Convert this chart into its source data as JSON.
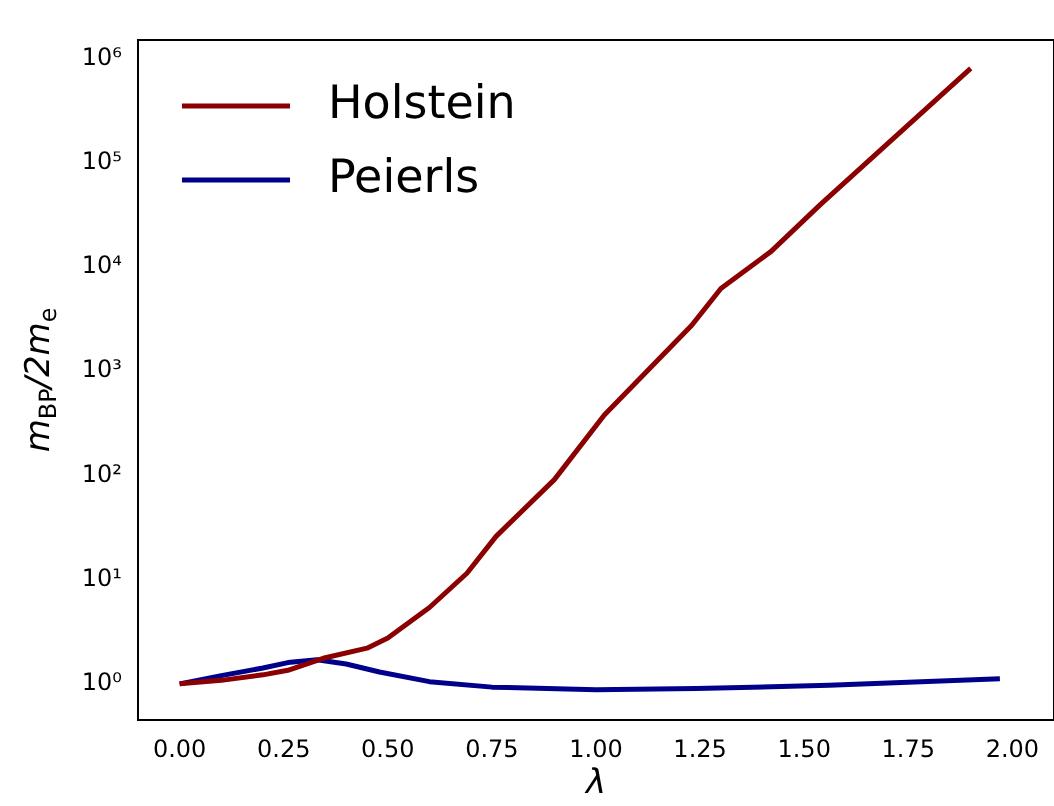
{
  "chart_data": {
    "type": "line",
    "xlabel": "λ",
    "ylabel": "m$_{BP}$/2m$_{e}$",
    "log": "y",
    "grid": false,
    "legend": "top left",
    "marker": "none",
    "line_style": "solid",
    "xlim": [
      -0.1,
      2.1
    ],
    "xticks": [
      {
        "value": 0,
        "label": "0.00"
      },
      {
        "value": 0.25,
        "label": "0.25"
      },
      {
        "value": 0.5,
        "label": "0.50"
      },
      {
        "value": 0.75,
        "label": "0.75"
      },
      {
        "value": 1,
        "label": "1.00"
      },
      {
        "value": 1.25,
        "label": "1.25"
      },
      {
        "value": 1.5,
        "label": "1.50"
      },
      {
        "value": 1.75,
        "label": "1.75"
      },
      {
        "value": 2,
        "label": "2.00"
      }
    ],
    "ylim": [
      0.45,
      1500000
    ],
    "yticks": [
      {
        "value": 1,
        "label": "10⁰"
      },
      {
        "value": 10,
        "label": "10¹"
      },
      {
        "value": 100,
        "label": "10²"
      },
      {
        "value": 1000,
        "label": "10³"
      },
      {
        "value": 10000,
        "label": "10⁴"
      },
      {
        "value": 100000,
        "label": "10⁵"
      },
      {
        "value": 1000000,
        "label": "10⁶"
      }
    ],
    "series": [
      {
        "name": "Holstein",
        "color": "#8b0000",
        "x": [
          0,
          0.1,
          0.2,
          0.26,
          0.35,
          0.45,
          0.5,
          0.6,
          0.69,
          0.76,
          0.9,
          1.02,
          1.23,
          1.3,
          1.42,
          1.54,
          1.9
        ],
        "values": [
          1,
          1.08,
          1.22,
          1.35,
          1.78,
          2.2,
          2.75,
          5.4,
          11.5,
          26,
          91,
          380,
          2750,
          6200,
          14000,
          40000,
          800000
        ]
      },
      {
        "name": "Peierls",
        "color": "#00008b",
        "x": [
          0,
          0.1,
          0.2,
          0.26,
          0.33,
          0.4,
          0.48,
          0.6,
          0.75,
          1.0,
          1.24,
          1.56,
          1.97
        ],
        "values": [
          1,
          1.2,
          1.42,
          1.6,
          1.7,
          1.55,
          1.3,
          1.05,
          0.93,
          0.88,
          0.9,
          0.97,
          1.12
        ]
      }
    ]
  }
}
